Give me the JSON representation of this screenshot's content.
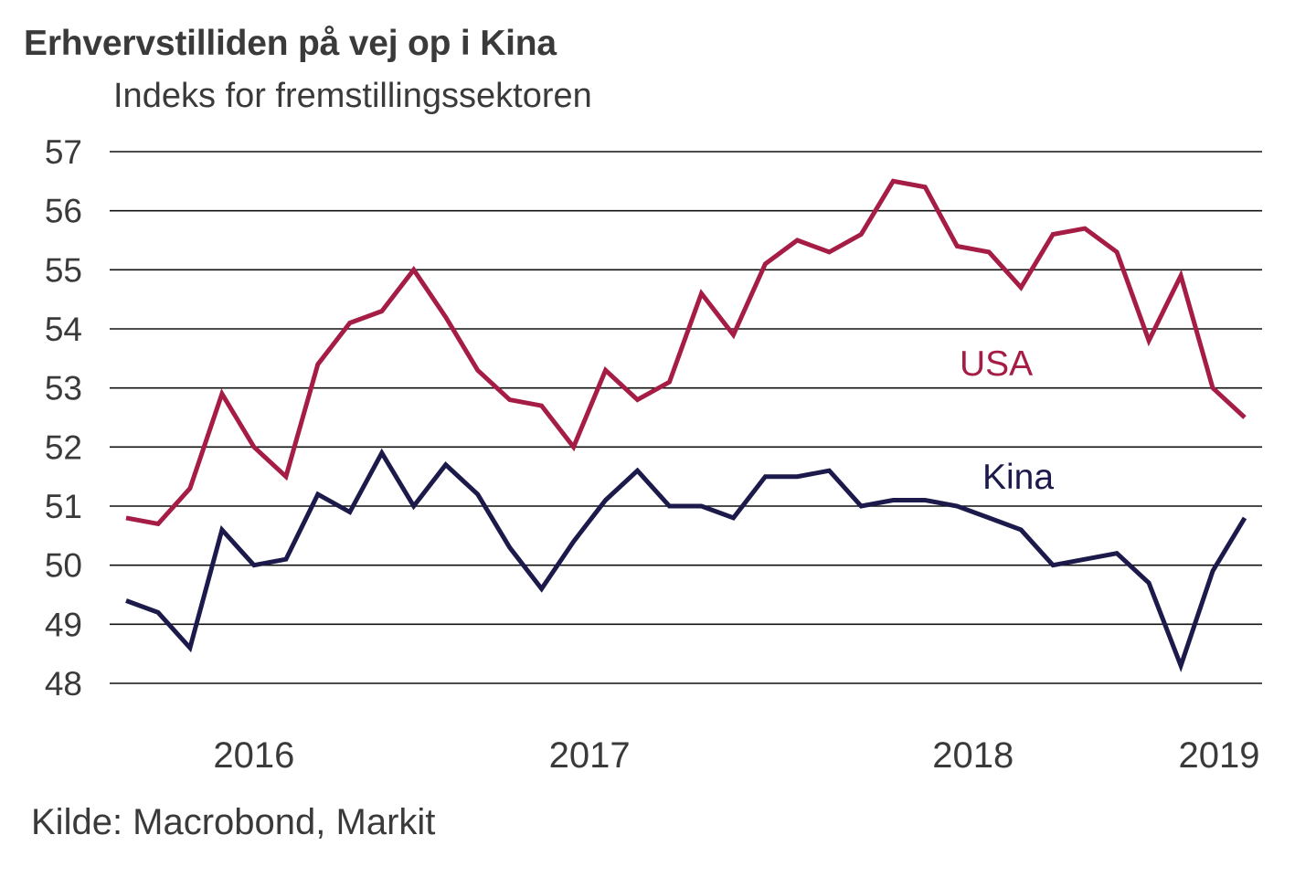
{
  "chart_data": {
    "type": "line",
    "title": "Erhvervstilliden på vej op i Kina",
    "subtitle": "Indeks for fremstillingssektoren",
    "xlabel": "",
    "ylabel": "",
    "ylim": [
      48,
      57
    ],
    "yticks": [
      "57",
      "56",
      "55",
      "54",
      "53",
      "52",
      "51",
      "50",
      "49",
      "48"
    ],
    "ytick_values": [
      57,
      56,
      55,
      54,
      53,
      52,
      51,
      50,
      49,
      48
    ],
    "xticks": [
      {
        "label": "2016",
        "index": 4
      },
      {
        "label": "2017",
        "index": 14.5
      },
      {
        "label": "2018",
        "index": 26.5
      },
      {
        "label": "2019",
        "index": 34.2
      }
    ],
    "grid": true,
    "n_points": 36,
    "series": [
      {
        "name": "USA",
        "label": "USA",
        "color": "#A51C45",
        "values": [
          50.8,
          50.7,
          51.3,
          52.9,
          52.0,
          51.5,
          53.4,
          54.1,
          54.3,
          55.0,
          54.2,
          53.3,
          52.8,
          52.7,
          52.0,
          53.3,
          52.8,
          53.1,
          54.6,
          53.9,
          55.1,
          55.5,
          55.3,
          55.6,
          56.5,
          56.4,
          55.4,
          55.3,
          54.7,
          55.6,
          55.7,
          55.3,
          53.8,
          54.9,
          53.0,
          52.5
        ]
      },
      {
        "name": "Kina",
        "label": "Kina",
        "color": "#1C1A4A",
        "values": [
          49.4,
          49.2,
          48.6,
          50.6,
          50.0,
          50.1,
          51.2,
          50.9,
          51.9,
          51.0,
          51.7,
          51.2,
          50.3,
          49.6,
          50.4,
          51.1,
          51.6,
          51.0,
          51.0,
          50.8,
          51.5,
          51.5,
          51.6,
          51.0,
          51.1,
          51.1,
          51.0,
          50.8,
          50.6,
          50.0,
          50.1,
          50.2,
          49.7,
          48.3,
          49.9,
          50.8
        ]
      }
    ]
  },
  "source": "Kilde: Macrobond, Markit"
}
